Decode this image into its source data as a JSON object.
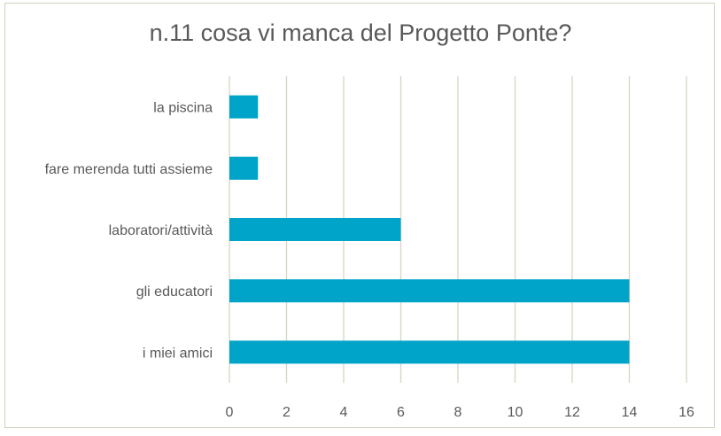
{
  "chart_data": {
    "type": "bar",
    "orientation": "horizontal",
    "title": "n.11 cosa vi manca del Progetto Ponte?",
    "categories": [
      "la piscina",
      "fare merenda tutti assieme",
      "laboratori/attività",
      "gli educatori",
      "i miei amici"
    ],
    "values": [
      1,
      1,
      6,
      14,
      14
    ],
    "xlim": [
      0,
      16
    ],
    "xticks": [
      0,
      2,
      4,
      6,
      8,
      10,
      12,
      14,
      16
    ],
    "xlabel": "",
    "ylabel": "",
    "grid": true,
    "bar_color": "#00a4c8",
    "grid_color": "#d9d4c2"
  }
}
